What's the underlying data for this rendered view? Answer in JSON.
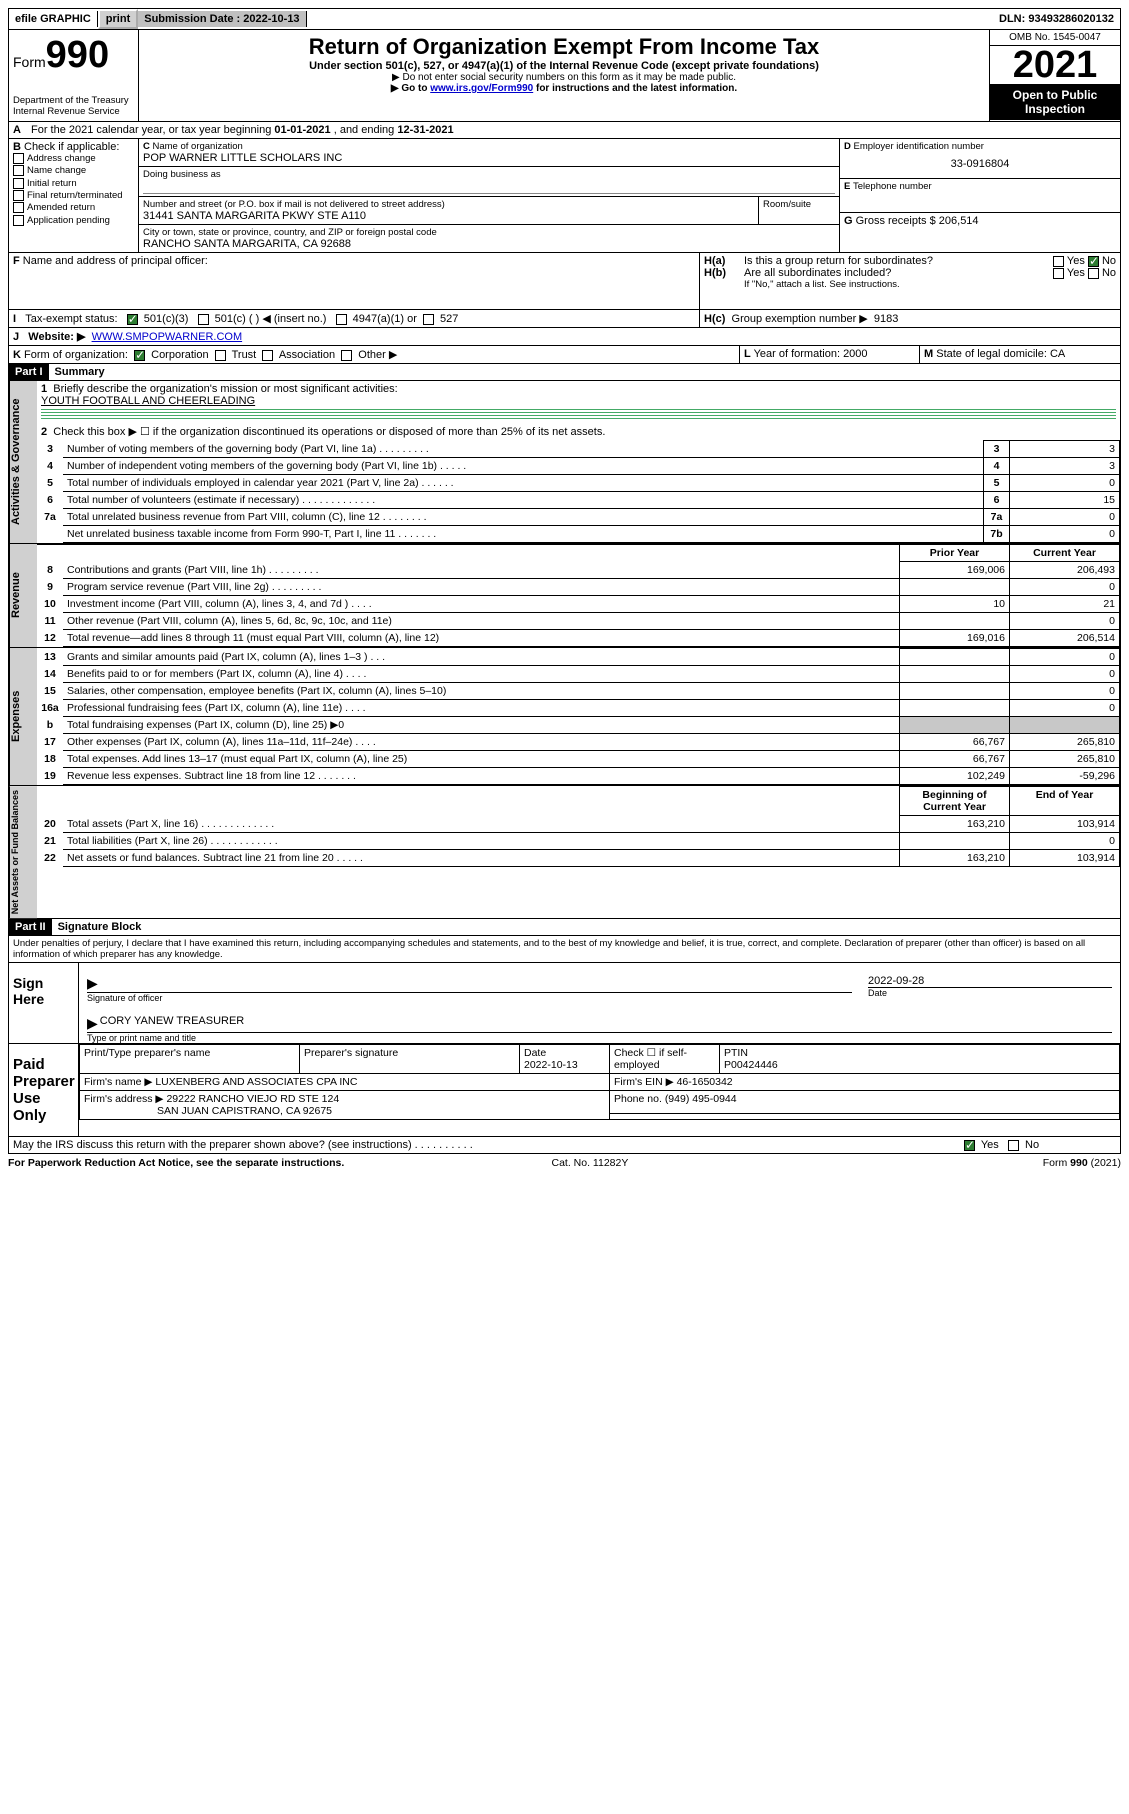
{
  "topbar": {
    "efile": "efile GRAPHIC",
    "print": "print",
    "sub_label": "Submission Date :",
    "sub_date": "2022-10-13",
    "dln": "DLN: 93493286020132"
  },
  "header": {
    "form_label": "Form",
    "form_no": "990",
    "dept": "Department of the Treasury\nInternal Revenue Service",
    "title": "Return of Organization Exempt From Income Tax",
    "sub": "Under section 501(c), 527, or 4947(a)(1) of the Internal Revenue Code (except private foundations)",
    "note1": "Do not enter social security numbers on this form as it may be made public.",
    "note2_pre": "Go to ",
    "note2_link": "www.irs.gov/Form990",
    "note2_post": " for instructions and the latest information.",
    "omb": "OMB No. 1545-0047",
    "year": "2021",
    "inspect": "Open to Public Inspection"
  },
  "a": {
    "text_pre": "For the 2021 calendar year, or tax year beginning ",
    "begin": "01-01-2021",
    "mid": " , and ending ",
    "end": "12-31-2021"
  },
  "b": {
    "label": "Check if applicable:",
    "items": [
      "Address change",
      "Name change",
      "Initial return",
      "Final return/terminated",
      "Amended return",
      "Application pending"
    ]
  },
  "c": {
    "label": "Name of organization",
    "name": "POP WARNER LITTLE SCHOLARS INC",
    "dba_label": "Doing business as",
    "street_label": "Number and street (or P.O. box if mail is not delivered to street address)",
    "room_label": "Room/suite",
    "street": "31441 SANTA MARGARITA PKWY STE A110",
    "city_label": "City or town, state or province, country, and ZIP or foreign postal code",
    "city": "RANCHO SANTA MARGARITA, CA  92688"
  },
  "d": {
    "label": "Employer identification number",
    "value": "33-0916804"
  },
  "e": {
    "label": "Telephone number",
    "value": ""
  },
  "g": {
    "label": "Gross receipts $",
    "value": "206,514"
  },
  "f": {
    "label": "Name and address of principal officer:"
  },
  "h": {
    "a": "Is this a group return for subordinates?",
    "a_yes": "Yes",
    "a_no": "No",
    "b": "Are all subordinates included?",
    "b_note": "If \"No,\" attach a list. See instructions.",
    "c": "Group exemption number ▶",
    "c_val": "9183"
  },
  "i": {
    "label": "Tax-exempt status:",
    "o1": "501(c)(3)",
    "o2": "501(c) (   ) ◀ (insert no.)",
    "o3": "4947(a)(1) or",
    "o4": "527"
  },
  "j": {
    "label": "Website: ▶",
    "value": "WWW.SMPOPWARNER.COM"
  },
  "k": {
    "label": "Form of organization:",
    "o1": "Corporation",
    "o2": "Trust",
    "o3": "Association",
    "o4": "Other ▶"
  },
  "l": {
    "label": "Year of formation:",
    "value": "2000"
  },
  "m": {
    "label": "State of legal domicile:",
    "value": "CA"
  },
  "part1": {
    "hdr": "Part I",
    "title": "Summary",
    "q1": "Briefly describe the organization's mission or most significant activities:",
    "q1a": "YOUTH FOOTBALL AND CHEERLEADING",
    "q2": "Check this box ▶ ☐  if the organization discontinued its operations or disposed of more than 25% of its net assets.",
    "rows_gov": [
      {
        "n": "3",
        "d": "Number of voting members of the governing body (Part VI, line 1a)  .   .   .   .   .   .   .   .   .",
        "box": "3",
        "v": "3"
      },
      {
        "n": "4",
        "d": "Number of independent voting members of the governing body (Part VI, line 1b)   .   .   .   .   .",
        "box": "4",
        "v": "3"
      },
      {
        "n": "5",
        "d": "Total number of individuals employed in calendar year 2021 (Part V, line 2a)   .   .   .   .   .   .",
        "box": "5",
        "v": "0"
      },
      {
        "n": "6",
        "d": "Total number of volunteers (estimate if necessary)   .   .   .   .   .   .   .   .   .   .   .   .   .",
        "box": "6",
        "v": "15"
      },
      {
        "n": "7a",
        "d": "Total unrelated business revenue from Part VIII, column (C), line 12   .   .   .   .   .   .   .   .",
        "box": "7a",
        "v": "0"
      },
      {
        "n": "",
        "d": "Net unrelated business taxable income from Form 990-T, Part I, line 11   .   .   .   .   .   .   .",
        "box": "7b",
        "v": "0"
      }
    ],
    "col_py": "Prior Year",
    "col_cy": "Current Year",
    "rows_rev": [
      {
        "n": "8",
        "d": "Contributions and grants (Part VIII, line 1h)   .   .   .   .   .   .   .   .   .",
        "py": "169,006",
        "cy": "206,493"
      },
      {
        "n": "9",
        "d": "Program service revenue (Part VIII, line 2g)   .   .   .   .   .   .   .   .   .",
        "py": "",
        "cy": "0"
      },
      {
        "n": "10",
        "d": "Investment income (Part VIII, column (A), lines 3, 4, and 7d )   .   .   .   .",
        "py": "10",
        "cy": "21"
      },
      {
        "n": "11",
        "d": "Other revenue (Part VIII, column (A), lines 5, 6d, 8c, 9c, 10c, and 11e)",
        "py": "",
        "cy": "0"
      },
      {
        "n": "12",
        "d": "Total revenue—add lines 8 through 11 (must equal Part VIII, column (A), line 12)",
        "py": "169,016",
        "cy": "206,514"
      }
    ],
    "rows_exp": [
      {
        "n": "13",
        "d": "Grants and similar amounts paid (Part IX, column (A), lines 1–3 )   .   .   .",
        "py": "",
        "cy": "0"
      },
      {
        "n": "14",
        "d": "Benefits paid to or for members (Part IX, column (A), line 4)   .   .   .   .",
        "py": "",
        "cy": "0"
      },
      {
        "n": "15",
        "d": "Salaries, other compensation, employee benefits (Part IX, column (A), lines 5–10)",
        "py": "",
        "cy": "0"
      },
      {
        "n": "16a",
        "d": "Professional fundraising fees (Part IX, column (A), line 11e)   .   .   .   .",
        "py": "",
        "cy": "0"
      },
      {
        "n": "b",
        "d": "Total fundraising expenses (Part IX, column (D), line 25) ▶0",
        "py": "shade",
        "cy": "shade"
      },
      {
        "n": "17",
        "d": "Other expenses (Part IX, column (A), lines 11a–11d, 11f–24e)   .   .   .   .",
        "py": "66,767",
        "cy": "265,810"
      },
      {
        "n": "18",
        "d": "Total expenses. Add lines 13–17 (must equal Part IX, column (A), line 25)",
        "py": "66,767",
        "cy": "265,810"
      },
      {
        "n": "19",
        "d": "Revenue less expenses. Subtract line 18 from line 12   .   .   .   .   .   .   .",
        "py": "102,249",
        "cy": "-59,296"
      }
    ],
    "col_boy": "Beginning of Current Year",
    "col_eoy": "End of Year",
    "rows_net": [
      {
        "n": "20",
        "d": "Total assets (Part X, line 16)   .   .   .   .   .   .   .   .   .   .   .   .   .",
        "py": "163,210",
        "cy": "103,914"
      },
      {
        "n": "21",
        "d": "Total liabilities (Part X, line 26)   .   .   .   .   .   .   .   .   .   .   .   .",
        "py": "",
        "cy": "0"
      },
      {
        "n": "22",
        "d": "Net assets or fund balances. Subtract line 21 from line 20   .   .   .   .   .",
        "py": "163,210",
        "cy": "103,914"
      }
    ],
    "vtab_gov": "Activities & Governance",
    "vtab_rev": "Revenue",
    "vtab_exp": "Expenses",
    "vtab_net": "Net Assets or Fund Balances"
  },
  "part2": {
    "hdr": "Part II",
    "title": "Signature Block",
    "decl": "Under penalties of perjury, I declare that I have examined this return, including accompanying schedules and statements, and to the best of my knowledge and belief, it is true, correct, and complete. Declaration of preparer (other than officer) is based on all information of which preparer has any knowledge.",
    "sign_here": "Sign Here",
    "sig_officer": "Signature of officer",
    "sig_date_label": "Date",
    "sig_date": "2022-09-28",
    "officer_name": "CORY YANEW  TREASURER",
    "officer_name_label": "Type or print name and title",
    "paid": "Paid Preparer Use Only",
    "p_name_label": "Print/Type preparer's name",
    "p_sig_label": "Preparer's signature",
    "p_date_label": "Date",
    "p_date": "2022-10-13",
    "p_check": "Check ☐ if self-employed",
    "p_ptin_label": "PTIN",
    "p_ptin": "P00424446",
    "firm_name_label": "Firm's name    ▶",
    "firm_name": "LUXENBERG AND ASSOCIATES CPA INC",
    "firm_ein_label": "Firm's EIN ▶",
    "firm_ein": "46-1650342",
    "firm_addr_label": "Firm's address ▶",
    "firm_addr1": "29222 RANCHO VIEJO RD STE 124",
    "firm_addr2": "SAN JUAN CAPISTRANO, CA  92675",
    "phone_label": "Phone no.",
    "phone": "(949) 495-0944",
    "discuss": "May the IRS discuss this return with the preparer shown above? (see instructions)   .   .   .   .   .   .   .   .   .   .",
    "yes": "Yes",
    "no": "No"
  },
  "footer": {
    "pra": "For Paperwork Reduction Act Notice, see the separate instructions.",
    "cat": "Cat. No. 11282Y",
    "form": "Form 990 (2021)"
  }
}
